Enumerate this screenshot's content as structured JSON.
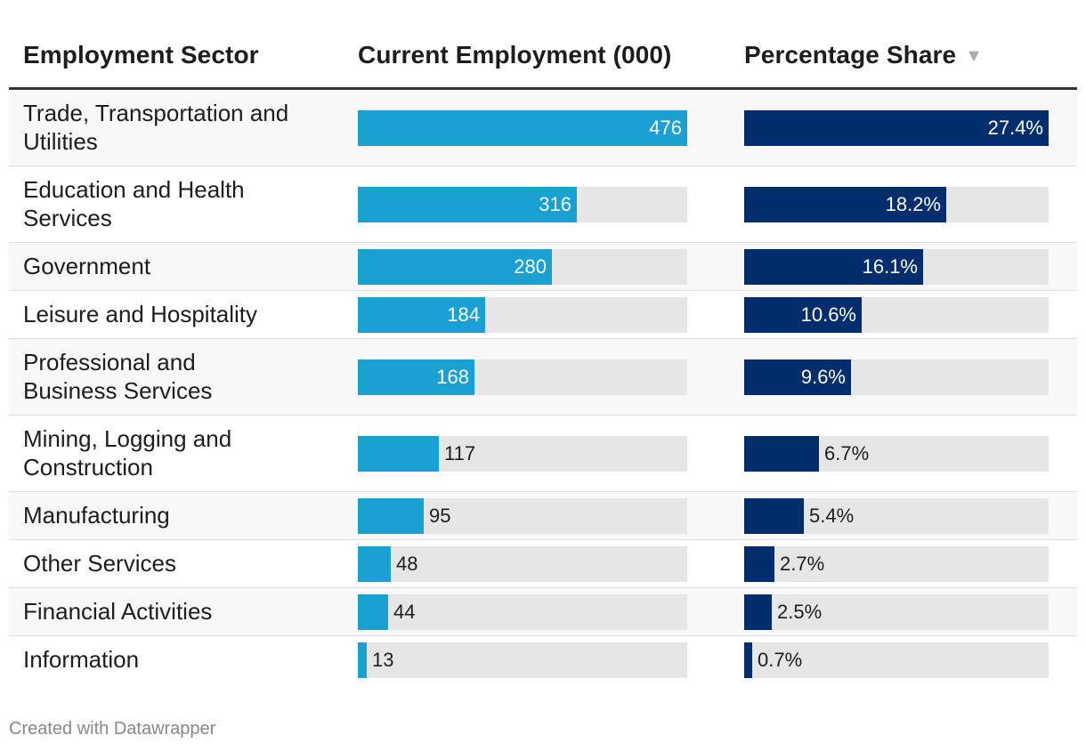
{
  "chart_data": {
    "type": "table",
    "columns": [
      "Employment Sector",
      "Current Employment (000)",
      "Percentage Share"
    ],
    "sort_indicator": "▼",
    "sorted_by": "Percentage Share",
    "sort_order": "descending",
    "employment_max": 476,
    "share_max": 27.4,
    "rows": [
      {
        "sector": "Trade, Transportation and Utilities",
        "employment": 476,
        "employment_label": "476",
        "share": 27.4,
        "share_label": "27.4%"
      },
      {
        "sector": "Education and Health Services",
        "employment": 316,
        "employment_label": "316",
        "share": 18.2,
        "share_label": "18.2%"
      },
      {
        "sector": "Government",
        "employment": 280,
        "employment_label": "280",
        "share": 16.1,
        "share_label": "16.1%"
      },
      {
        "sector": "Leisure and Hospitality",
        "employment": 184,
        "employment_label": "184",
        "share": 10.6,
        "share_label": "10.6%"
      },
      {
        "sector": "Professional and Business Services",
        "employment": 168,
        "employment_label": "168",
        "share": 9.6,
        "share_label": "9.6%"
      },
      {
        "sector": "Mining, Logging and Construction",
        "employment": 117,
        "employment_label": "117",
        "share": 6.7,
        "share_label": "6.7%"
      },
      {
        "sector": "Manufacturing",
        "employment": 95,
        "employment_label": "95",
        "share": 5.4,
        "share_label": "5.4%"
      },
      {
        "sector": "Other Services",
        "employment": 48,
        "employment_label": "48",
        "share": 2.7,
        "share_label": "2.7%"
      },
      {
        "sector": "Financial Activities",
        "employment": 44,
        "employment_label": "44",
        "share": 2.5,
        "share_label": "2.5%"
      },
      {
        "sector": "Information",
        "employment": 13,
        "employment_label": "13",
        "share": 0.7,
        "share_label": "0.7%"
      }
    ],
    "colors": {
      "employment_bar": "#1ba1d1",
      "share_bar": "#002d6b",
      "track": "#e6e6e6"
    }
  },
  "footer": {
    "credit": "Created with Datawrapper"
  }
}
